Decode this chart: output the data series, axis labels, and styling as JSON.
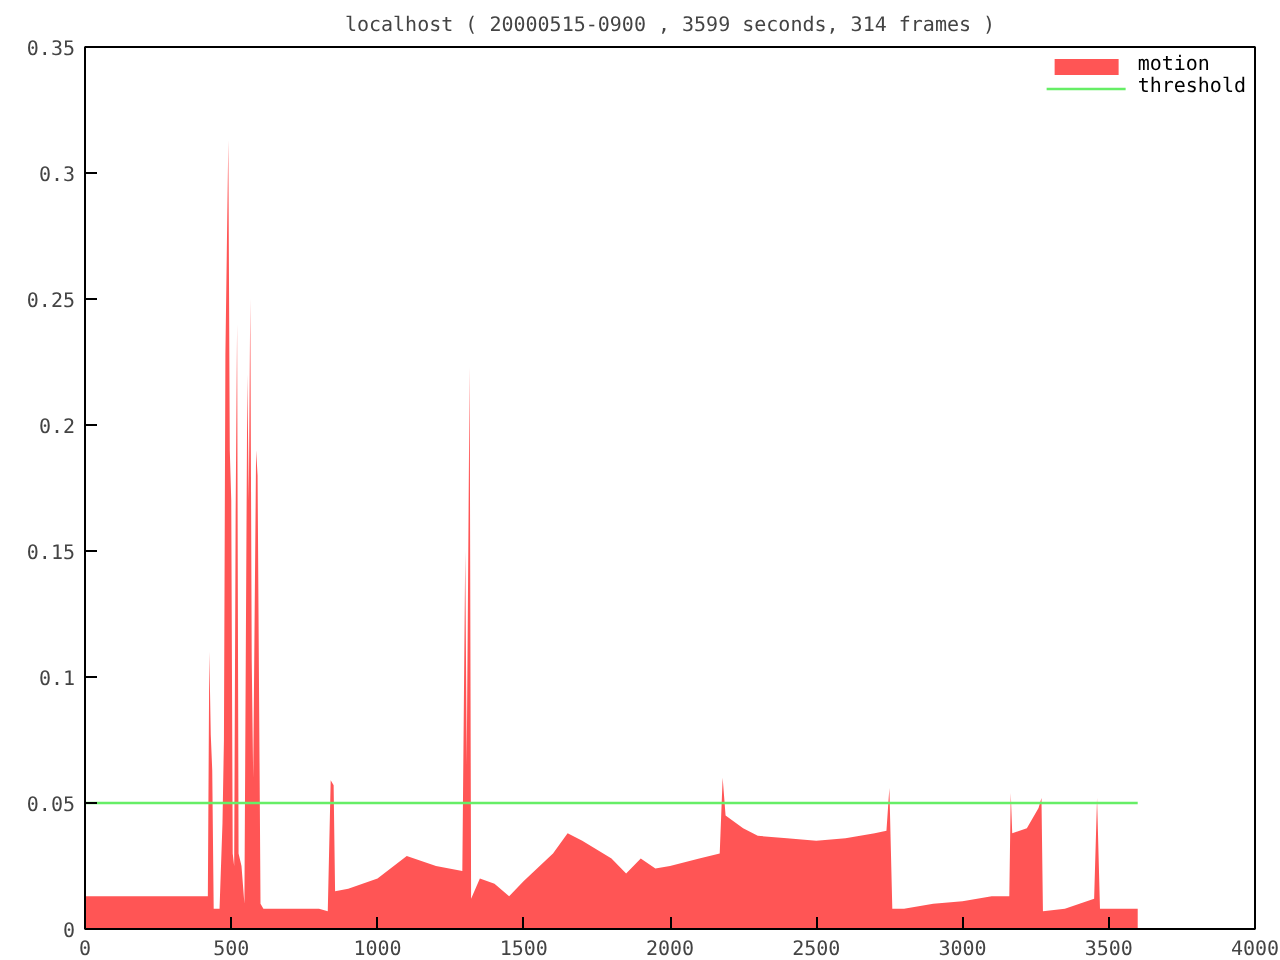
{
  "chart_data": {
    "type": "area",
    "title": "localhost ( 20000515-0900 , 3599 seconds, 314 frames )",
    "xlim": [
      0,
      4000
    ],
    "xticks": [
      0,
      500,
      1000,
      1500,
      2000,
      2500,
      3000,
      3500,
      4000
    ],
    "ylim": [
      0,
      0.35
    ],
    "yticks": [
      0,
      0.05,
      0.1,
      0.15,
      0.2,
      0.25,
      0.3,
      0.35
    ],
    "grid": false,
    "legend": "top right",
    "series": [
      {
        "name": "motion",
        "color": "#ff5555",
        "x": [
          0,
          420,
          425,
          430,
          435,
          440,
          460,
          470,
          475,
          480,
          490,
          495,
          500,
          505,
          510,
          515,
          520,
          525,
          535,
          545,
          555,
          560,
          565,
          570,
          575,
          585,
          590,
          600,
          610,
          700,
          800,
          830,
          840,
          850,
          855,
          900,
          1000,
          1100,
          1200,
          1290,
          1300,
          1305,
          1315,
          1320,
          1350,
          1400,
          1450,
          1500,
          1600,
          1650,
          1700,
          1800,
          1850,
          1900,
          1950,
          2000,
          2100,
          2170,
          2180,
          2190,
          2250,
          2300,
          2400,
          2500,
          2600,
          2700,
          2740,
          2750,
          2760,
          2800,
          2900,
          3000,
          3100,
          3160,
          3165,
          3170,
          3220,
          3260,
          3270,
          3275,
          3350,
          3400,
          3450,
          3460,
          3470,
          3599
        ],
        "values": [
          0.013,
          0.013,
          0.11,
          0.077,
          0.063,
          0.008,
          0.008,
          0.042,
          0.075,
          0.228,
          0.313,
          0.19,
          0.17,
          0.03,
          0.025,
          0.165,
          0.24,
          0.03,
          0.025,
          0.01,
          0.22,
          0.17,
          0.25,
          0.107,
          0.06,
          0.19,
          0.18,
          0.01,
          0.008,
          0.008,
          0.008,
          0.007,
          0.059,
          0.057,
          0.015,
          0.016,
          0.02,
          0.029,
          0.025,
          0.023,
          0.15,
          0.065,
          0.223,
          0.012,
          0.02,
          0.018,
          0.013,
          0.019,
          0.03,
          0.038,
          0.035,
          0.028,
          0.022,
          0.028,
          0.024,
          0.025,
          0.028,
          0.03,
          0.06,
          0.045,
          0.04,
          0.037,
          0.036,
          0.035,
          0.036,
          0.038,
          0.039,
          0.056,
          0.008,
          0.008,
          0.01,
          0.011,
          0.013,
          0.013,
          0.054,
          0.038,
          0.04,
          0.048,
          0.052,
          0.007,
          0.008,
          0.01,
          0.012,
          0.052,
          0.008,
          0.008
        ]
      },
      {
        "name": "threshold",
        "color": "#66ee66",
        "type": "line",
        "x": [
          0,
          3599
        ],
        "values": [
          0.05,
          0.05
        ]
      }
    ]
  }
}
